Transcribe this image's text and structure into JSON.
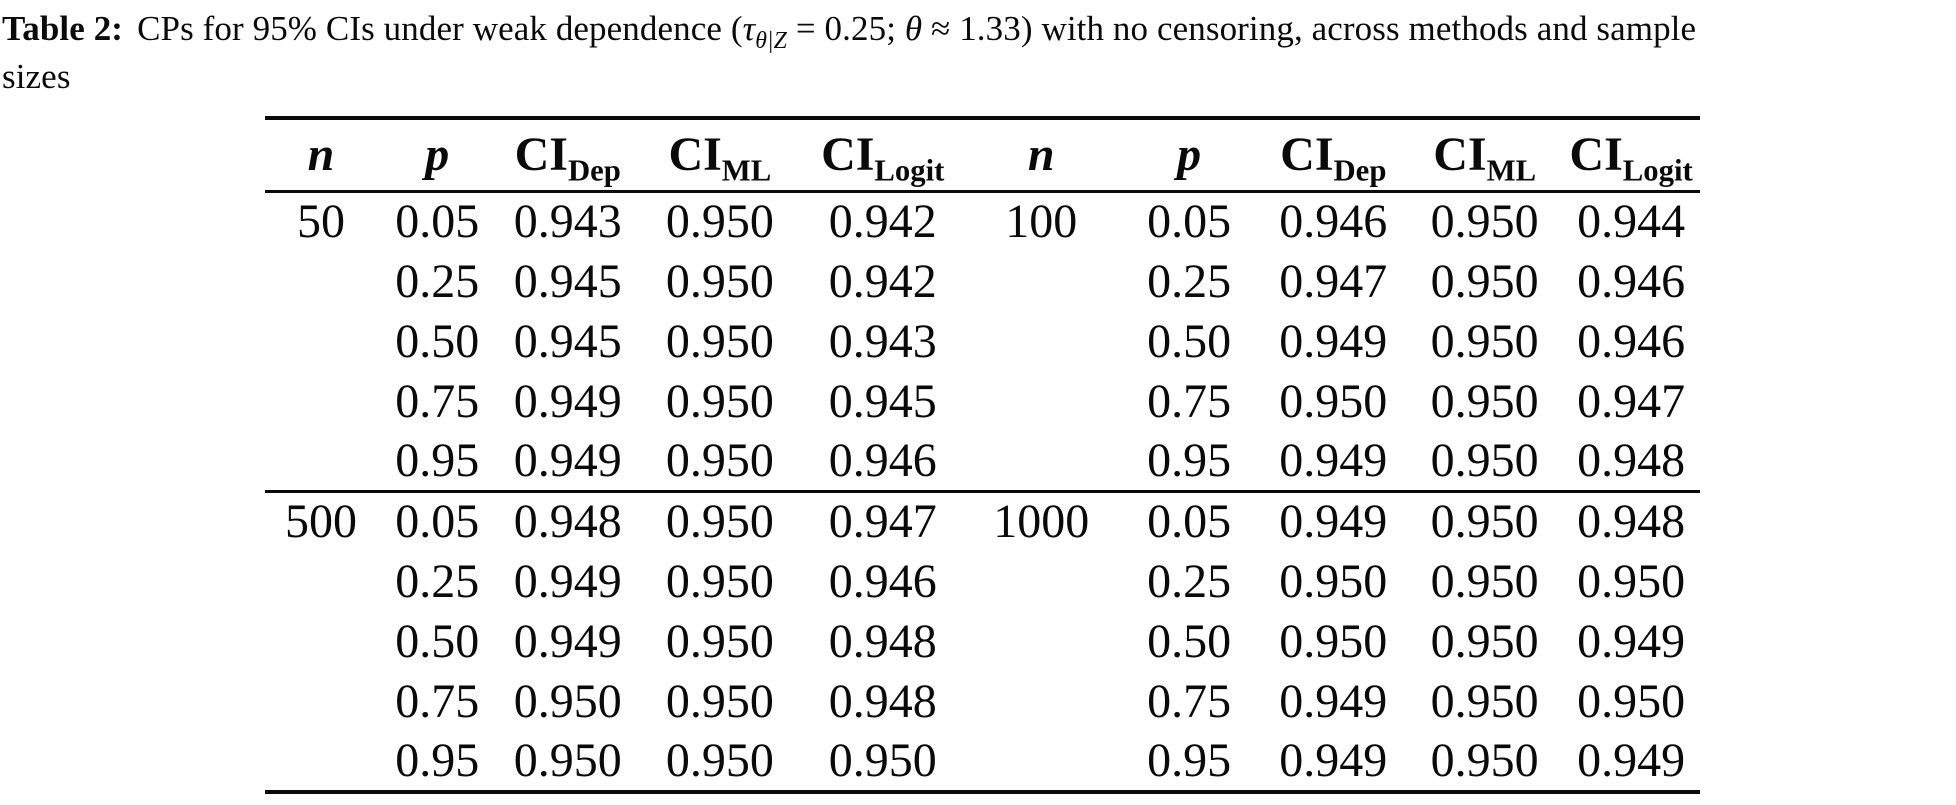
{
  "colors": {
    "text": "#0a0a0a",
    "background": "#ffffff",
    "rule": "#0a0a0a"
  },
  "caption": {
    "label": "Table 2:",
    "segments": [
      {
        "t": "CPs for 95% CIs under weak dependence (",
        "style": "plain"
      },
      {
        "t": "τ",
        "style": "italic"
      },
      {
        "t": "θ|Z",
        "style": "sub-italic"
      },
      {
        "t": " = 0.25; ",
        "style": "plain"
      },
      {
        "t": "θ",
        "style": "italic"
      },
      {
        "t": " ≈ 1.33) with no censoring, across methods and sample",
        "style": "plain"
      },
      {
        "t": "sizes",
        "style": "plain",
        "break_before": true
      }
    ]
  },
  "table": {
    "column_headers": [
      {
        "text": "n",
        "style": "math"
      },
      {
        "text": "p",
        "style": "math"
      },
      {
        "text": "CI",
        "sub": "Dep"
      },
      {
        "text": "CI",
        "sub": "ML"
      },
      {
        "text": "CI",
        "sub": "Logit"
      },
      {
        "text": "n",
        "style": "math"
      },
      {
        "text": "p",
        "style": "math"
      },
      {
        "text": "CI",
        "sub": "Dep"
      },
      {
        "text": "CI",
        "sub": "ML"
      },
      {
        "text": "CI",
        "sub": "Logit"
      }
    ],
    "row_groups": [
      {
        "rows": [
          [
            "50",
            "0.05",
            "0.943",
            "0.950",
            "0.942",
            "100",
            "0.05",
            "0.946",
            "0.950",
            "0.944"
          ],
          [
            "",
            "0.25",
            "0.945",
            "0.950",
            "0.942",
            "",
            "0.25",
            "0.947",
            "0.950",
            "0.946"
          ],
          [
            "",
            "0.50",
            "0.945",
            "0.950",
            "0.943",
            "",
            "0.50",
            "0.949",
            "0.950",
            "0.946"
          ],
          [
            "",
            "0.75",
            "0.949",
            "0.950",
            "0.945",
            "",
            "0.75",
            "0.950",
            "0.950",
            "0.947"
          ],
          [
            "",
            "0.95",
            "0.949",
            "0.950",
            "0.946",
            "",
            "0.95",
            "0.949",
            "0.950",
            "0.948"
          ]
        ]
      },
      {
        "rows": [
          [
            "500",
            "0.05",
            "0.948",
            "0.950",
            "0.947",
            "1000",
            "0.05",
            "0.949",
            "0.950",
            "0.948"
          ],
          [
            "",
            "0.25",
            "0.949",
            "0.950",
            "0.946",
            "",
            "0.25",
            "0.950",
            "0.950",
            "0.950"
          ],
          [
            "",
            "0.50",
            "0.949",
            "0.950",
            "0.948",
            "",
            "0.50",
            "0.950",
            "0.950",
            "0.949"
          ],
          [
            "",
            "0.75",
            "0.950",
            "0.950",
            "0.948",
            "",
            "0.75",
            "0.949",
            "0.950",
            "0.950"
          ],
          [
            "",
            "0.95",
            "0.950",
            "0.950",
            "0.950",
            "",
            "0.95",
            "0.949",
            "0.950",
            "0.949"
          ]
        ]
      }
    ]
  }
}
